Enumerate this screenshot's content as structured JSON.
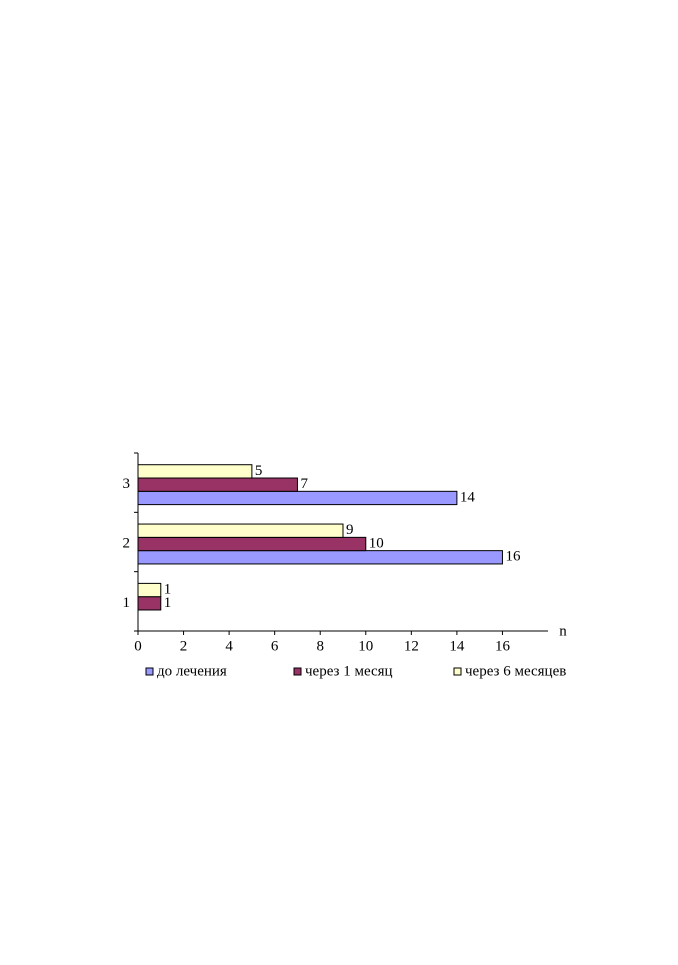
{
  "chart_data": {
    "type": "bar",
    "orientation": "horizontal",
    "categories": [
      "1",
      "2",
      "3"
    ],
    "series": [
      {
        "name": "до лечения",
        "color": "#9999ff",
        "values": [
          null,
          16,
          14
        ]
      },
      {
        "name": "через 1 месяц",
        "color": "#993366",
        "values": [
          1,
          10,
          7
        ]
      },
      {
        "name": "через 6 месяцев",
        "color": "#ffffcc",
        "values": [
          1,
          9,
          5
        ]
      }
    ],
    "x_label": "n",
    "xlim": [
      0,
      18
    ],
    "xticks": [
      0,
      2,
      4,
      6,
      8,
      10,
      12,
      14,
      16
    ],
    "legend": "bottom",
    "grid": false
  }
}
